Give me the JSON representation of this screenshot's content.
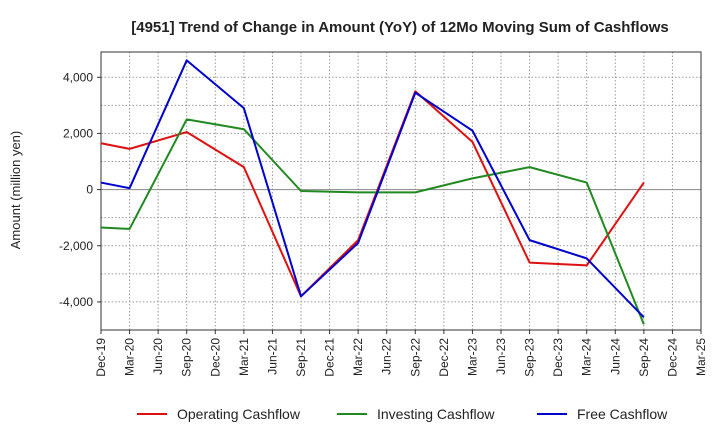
{
  "chart_data": {
    "type": "line",
    "title": "[4951]  Trend of Change in Amount (YoY) of 12Mo Moving Sum of Cashflows",
    "xlabel": "",
    "ylabel": "Amount (million yen)",
    "ylim": [
      -5000,
      4900
    ],
    "yticks": [
      -4000,
      -2000,
      0,
      2000,
      4000
    ],
    "ytick_labels": [
      "-4,000",
      "-2,000",
      "0",
      "2,000",
      "4,000"
    ],
    "grid": true,
    "legend_position": "bottom",
    "categories": [
      "Dec-19",
      "Mar-20",
      "Jun-20",
      "Sep-20",
      "Dec-20",
      "Mar-21",
      "Jun-21",
      "Sep-21",
      "Dec-21",
      "Mar-22",
      "Jun-22",
      "Sep-22",
      "Dec-22",
      "Mar-23",
      "Jun-23",
      "Sep-23",
      "Dec-23",
      "Mar-24",
      "Jun-24",
      "Sep-24",
      "Dec-24",
      "Mar-25"
    ],
    "series": [
      {
        "name": "Operating Cashflow",
        "color": "#dd1111",
        "values": [
          1650,
          1450,
          null,
          2050,
          null,
          800,
          null,
          -3800,
          null,
          -1800,
          null,
          3500,
          null,
          1700,
          null,
          -2600,
          null,
          -2700,
          null,
          250,
          null,
          null
        ]
      },
      {
        "name": "Investing Cashflow",
        "color": "#228822",
        "values": [
          -1350,
          -1400,
          null,
          2500,
          null,
          2150,
          null,
          -50,
          null,
          -100,
          null,
          -100,
          null,
          400,
          null,
          800,
          null,
          250,
          null,
          -4800,
          null,
          null
        ]
      },
      {
        "name": "Free Cashflow",
        "color": "#0000cc",
        "values": [
          250,
          50,
          null,
          4600,
          null,
          2900,
          null,
          -3800,
          null,
          -1900,
          null,
          3450,
          null,
          2100,
          null,
          -1800,
          null,
          -2450,
          null,
          -4550,
          null,
          null
        ]
      }
    ]
  }
}
